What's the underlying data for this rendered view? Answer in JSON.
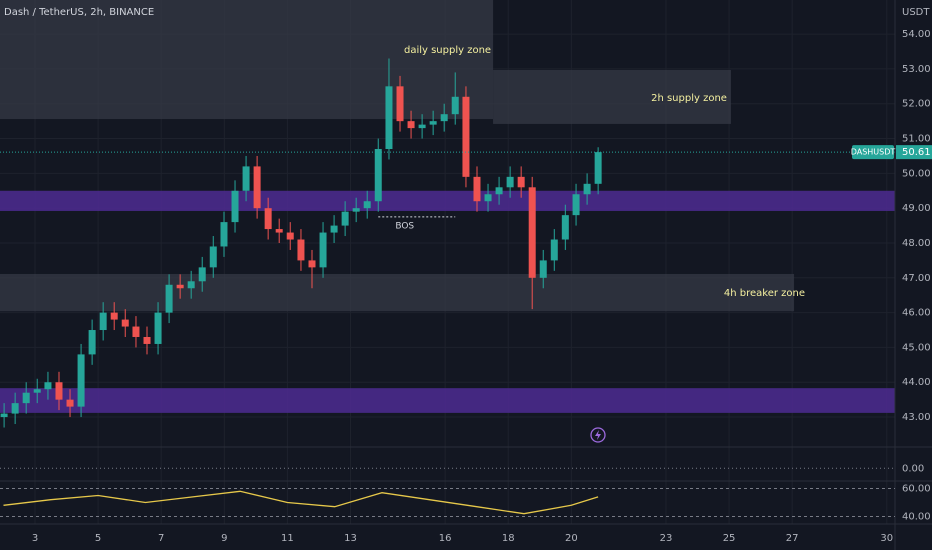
{
  "chart_data": {
    "type": "candlestick",
    "title": "Dash / TetherUS, 2h, BINANCE",
    "y_unit": "USDT",
    "xlim": [
      1.89,
      30.26
    ],
    "xticks": [
      3,
      5,
      7,
      9,
      11,
      13,
      16,
      18,
      20,
      23,
      25,
      27,
      30
    ],
    "ylim": [
      42.14,
      54.98
    ],
    "yticks": [
      {
        "value": 43,
        "label": "43.00"
      },
      {
        "value": 44,
        "label": "44.00"
      },
      {
        "value": 45,
        "label": "45.00"
      },
      {
        "value": 46,
        "label": "46.00"
      },
      {
        "value": 47,
        "label": "47.00"
      },
      {
        "value": 48,
        "label": "48.00"
      },
      {
        "value": 49,
        "label": "49.00"
      },
      {
        "value": 50,
        "label": "50.00"
      },
      {
        "value": 51,
        "label": "51.00"
      },
      {
        "value": 52,
        "label": "52.00"
      },
      {
        "value": 53,
        "label": "53.00"
      },
      {
        "value": 54,
        "label": "54.00"
      }
    ],
    "grid": true,
    "up_color": "#26a69a",
    "down_color": "#ef5350",
    "candles": {
      "x": [
        2.02,
        2.37,
        2.72,
        3.07,
        3.41,
        3.76,
        4.11,
        4.46,
        4.81,
        5.16,
        5.51,
        5.86,
        6.2,
        6.55,
        6.9,
        7.25,
        7.6,
        7.95,
        8.3,
        8.65,
        8.99,
        9.34,
        9.69,
        10.04,
        10.39,
        10.74,
        11.09,
        11.43,
        11.78,
        12.13,
        12.48,
        12.83,
        13.18,
        13.53,
        13.88,
        14.22,
        14.57,
        14.92,
        15.27,
        15.62,
        15.97,
        16.32,
        16.66,
        17.01,
        17.36,
        17.71,
        18.06,
        18.41,
        18.76,
        19.11,
        19.46,
        19.81,
        20.15,
        20.5,
        20.85
      ],
      "open": [
        43.0,
        43.1,
        43.4,
        43.7,
        43.8,
        44.0,
        43.5,
        43.3,
        44.8,
        45.5,
        46.0,
        45.8,
        45.6,
        45.3,
        45.1,
        46.0,
        46.8,
        46.7,
        46.9,
        47.3,
        47.9,
        48.6,
        49.5,
        50.2,
        49.0,
        48.4,
        48.3,
        48.1,
        47.5,
        47.3,
        48.3,
        48.5,
        48.9,
        49.0,
        49.2,
        50.7,
        52.5,
        51.5,
        51.3,
        51.4,
        51.5,
        51.7,
        52.2,
        49.9,
        49.2,
        49.4,
        49.6,
        49.9,
        49.6,
        47.0,
        47.5,
        48.1,
        48.8,
        49.4,
        49.7
      ],
      "high": [
        43.4,
        43.7,
        44.0,
        44.1,
        44.3,
        44.3,
        43.8,
        45.1,
        45.8,
        46.3,
        46.3,
        46.1,
        45.9,
        45.6,
        46.3,
        47.1,
        47.1,
        47.2,
        47.6,
        48.2,
        48.9,
        49.8,
        50.5,
        50.5,
        49.3,
        48.7,
        48.6,
        48.4,
        47.8,
        48.6,
        48.8,
        49.2,
        49.3,
        49.5,
        51.0,
        53.3,
        52.8,
        51.8,
        51.7,
        51.8,
        52.0,
        52.9,
        52.5,
        50.2,
        49.7,
        49.9,
        50.2,
        50.2,
        49.9,
        47.8,
        48.4,
        49.1,
        49.7,
        50.0,
        50.75
      ],
      "low": [
        42.7,
        42.8,
        43.1,
        43.4,
        43.5,
        43.2,
        43.0,
        43.0,
        44.5,
        45.2,
        45.5,
        45.3,
        45.0,
        44.8,
        44.8,
        45.7,
        46.4,
        46.4,
        46.6,
        47.0,
        47.6,
        48.3,
        49.2,
        48.7,
        48.1,
        48.0,
        47.8,
        47.2,
        46.7,
        47.0,
        48.0,
        48.2,
        48.6,
        48.7,
        48.9,
        50.4,
        51.2,
        51.0,
        51.0,
        51.1,
        51.2,
        51.4,
        49.6,
        48.9,
        48.9,
        49.1,
        49.3,
        49.3,
        46.1,
        46.7,
        47.2,
        47.8,
        48.5,
        49.1,
        49.4
      ],
      "close": [
        43.1,
        43.4,
        43.7,
        43.8,
        44.0,
        43.5,
        43.3,
        44.8,
        45.5,
        46.0,
        45.8,
        45.6,
        45.3,
        45.1,
        46.0,
        46.8,
        46.7,
        46.9,
        47.3,
        47.9,
        48.6,
        49.5,
        50.2,
        49.0,
        48.4,
        48.3,
        48.1,
        47.5,
        47.3,
        48.3,
        48.5,
        48.9,
        49.0,
        49.2,
        50.7,
        52.5,
        51.5,
        51.3,
        51.4,
        51.5,
        51.7,
        52.2,
        49.9,
        49.2,
        49.4,
        49.6,
        49.9,
        49.6,
        47.0,
        47.5,
        48.1,
        48.8,
        49.4,
        49.7,
        50.61
      ]
    },
    "zones": [
      {
        "label": "daily supply zone",
        "x": [
          1.89,
          17.52
        ],
        "price": [
          54.98,
          51.56
        ],
        "color": "#363a45"
      },
      {
        "label": "2h supply zone",
        "x": [
          17.52,
          25.06
        ],
        "price": [
          52.97,
          51.42
        ],
        "color": "#363a45"
      },
      {
        "label": "4h breaker zone",
        "x": [
          1.89,
          27.06
        ],
        "price": [
          47.11,
          46.04
        ],
        "color": "#363a45"
      }
    ],
    "bands": [
      {
        "price": [
          49.5,
          48.92
        ],
        "color": "#4a2a8c"
      },
      {
        "price": [
          43.83,
          43.12
        ],
        "color": "#4a2a8c"
      }
    ],
    "bos": {
      "label": "BOS",
      "price": 48.75,
      "x": [
        13.88,
        16.32
      ]
    },
    "last_price": {
      "symbol": "DASHUSDT",
      "value": 50.61
    },
    "macd": {
      "ylim": [
        -0.6,
        1.0
      ],
      "yticks": [
        {
          "value": 0,
          "label": "0.00"
        }
      ]
    },
    "rsi": {
      "ylim": [
        34.6,
        65.4
      ],
      "yticks": [
        {
          "value": 40,
          "label": "40.00"
        },
        {
          "value": 60,
          "label": "60.00"
        }
      ],
      "color": "#e6c84a",
      "x": [
        2.0,
        3.5,
        5,
        6.5,
        8,
        9.5,
        11,
        12.5,
        14,
        15.5,
        17,
        18.5,
        20,
        20.85
      ],
      "values": [
        48,
        52,
        55,
        50,
        54,
        58,
        50,
        47,
        57,
        52,
        47,
        42,
        48,
        54
      ]
    }
  }
}
